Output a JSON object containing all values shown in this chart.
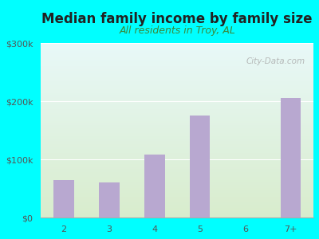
{
  "title": "Median family income by family size",
  "subtitle": "All residents in Troy, AL",
  "categories": [
    "2",
    "3",
    "4",
    "5",
    "6",
    "7+"
  ],
  "values": [
    65000,
    60000,
    108000,
    175000,
    0,
    205000
  ],
  "bar_color": "#b8a8d0",
  "figure_bg": "#00ffff",
  "plot_bg_top": "#e8f8f8",
  "plot_bg_bottom": "#d8eccc",
  "title_color": "#222222",
  "subtitle_color": "#3a8a3a",
  "tick_color": "#555555",
  "ylim": [
    0,
    300000
  ],
  "yticks": [
    0,
    100000,
    200000,
    300000
  ],
  "ytick_labels": [
    "$0",
    "$100k",
    "$200k",
    "$300k"
  ],
  "watermark": "City-Data.com",
  "title_fontsize": 12,
  "subtitle_fontsize": 9,
  "tick_fontsize": 8
}
